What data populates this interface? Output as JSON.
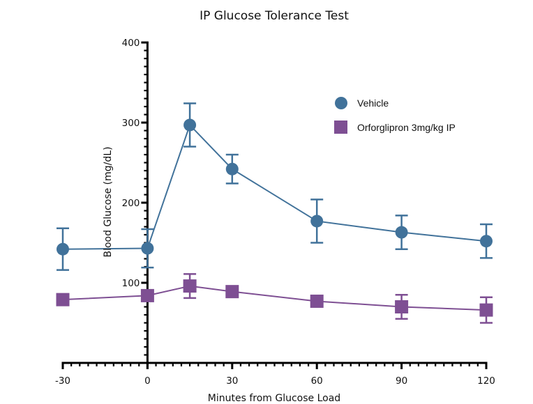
{
  "chart_data": {
    "type": "line",
    "title": "IP Glucose Tolerance Test",
    "xlabel": "Minutes from Glucose Load",
    "ylabel": "Blood Glucose (mg/dL)",
    "xlim": [
      -30,
      120
    ],
    "ylim": [
      0,
      400
    ],
    "x_ticks": [
      -30,
      0,
      30,
      60,
      90,
      120
    ],
    "x_tick_labels": [
      "-30",
      "0",
      "30",
      "60",
      "90",
      "120"
    ],
    "x_minor_step": 3,
    "y_ticks": [
      100,
      200,
      300,
      400
    ],
    "y_tick_labels": [
      "100",
      "200",
      "300",
      "400"
    ],
    "y_minor_step": 10,
    "x_axis_crosses_at": 0,
    "y_axis_crosses_at": 0,
    "grid": false,
    "legend_position": "top-right",
    "x": [
      -30,
      0,
      15,
      30,
      60,
      90,
      120
    ],
    "series": [
      {
        "name": "Vehicle",
        "marker": "circle",
        "color": "#41729A",
        "values": [
          142,
          143,
          297,
          242,
          177,
          163,
          152
        ],
        "error": [
          26,
          24,
          27,
          18,
          27,
          21,
          21
        ]
      },
      {
        "name": "Orforglipron 3mg/kg IP",
        "marker": "square",
        "color": "#7E4F93",
        "values": [
          79,
          84,
          96,
          89,
          77,
          70,
          66
        ],
        "error": [
          0,
          0,
          15,
          0,
          0,
          15,
          16
        ]
      }
    ]
  }
}
